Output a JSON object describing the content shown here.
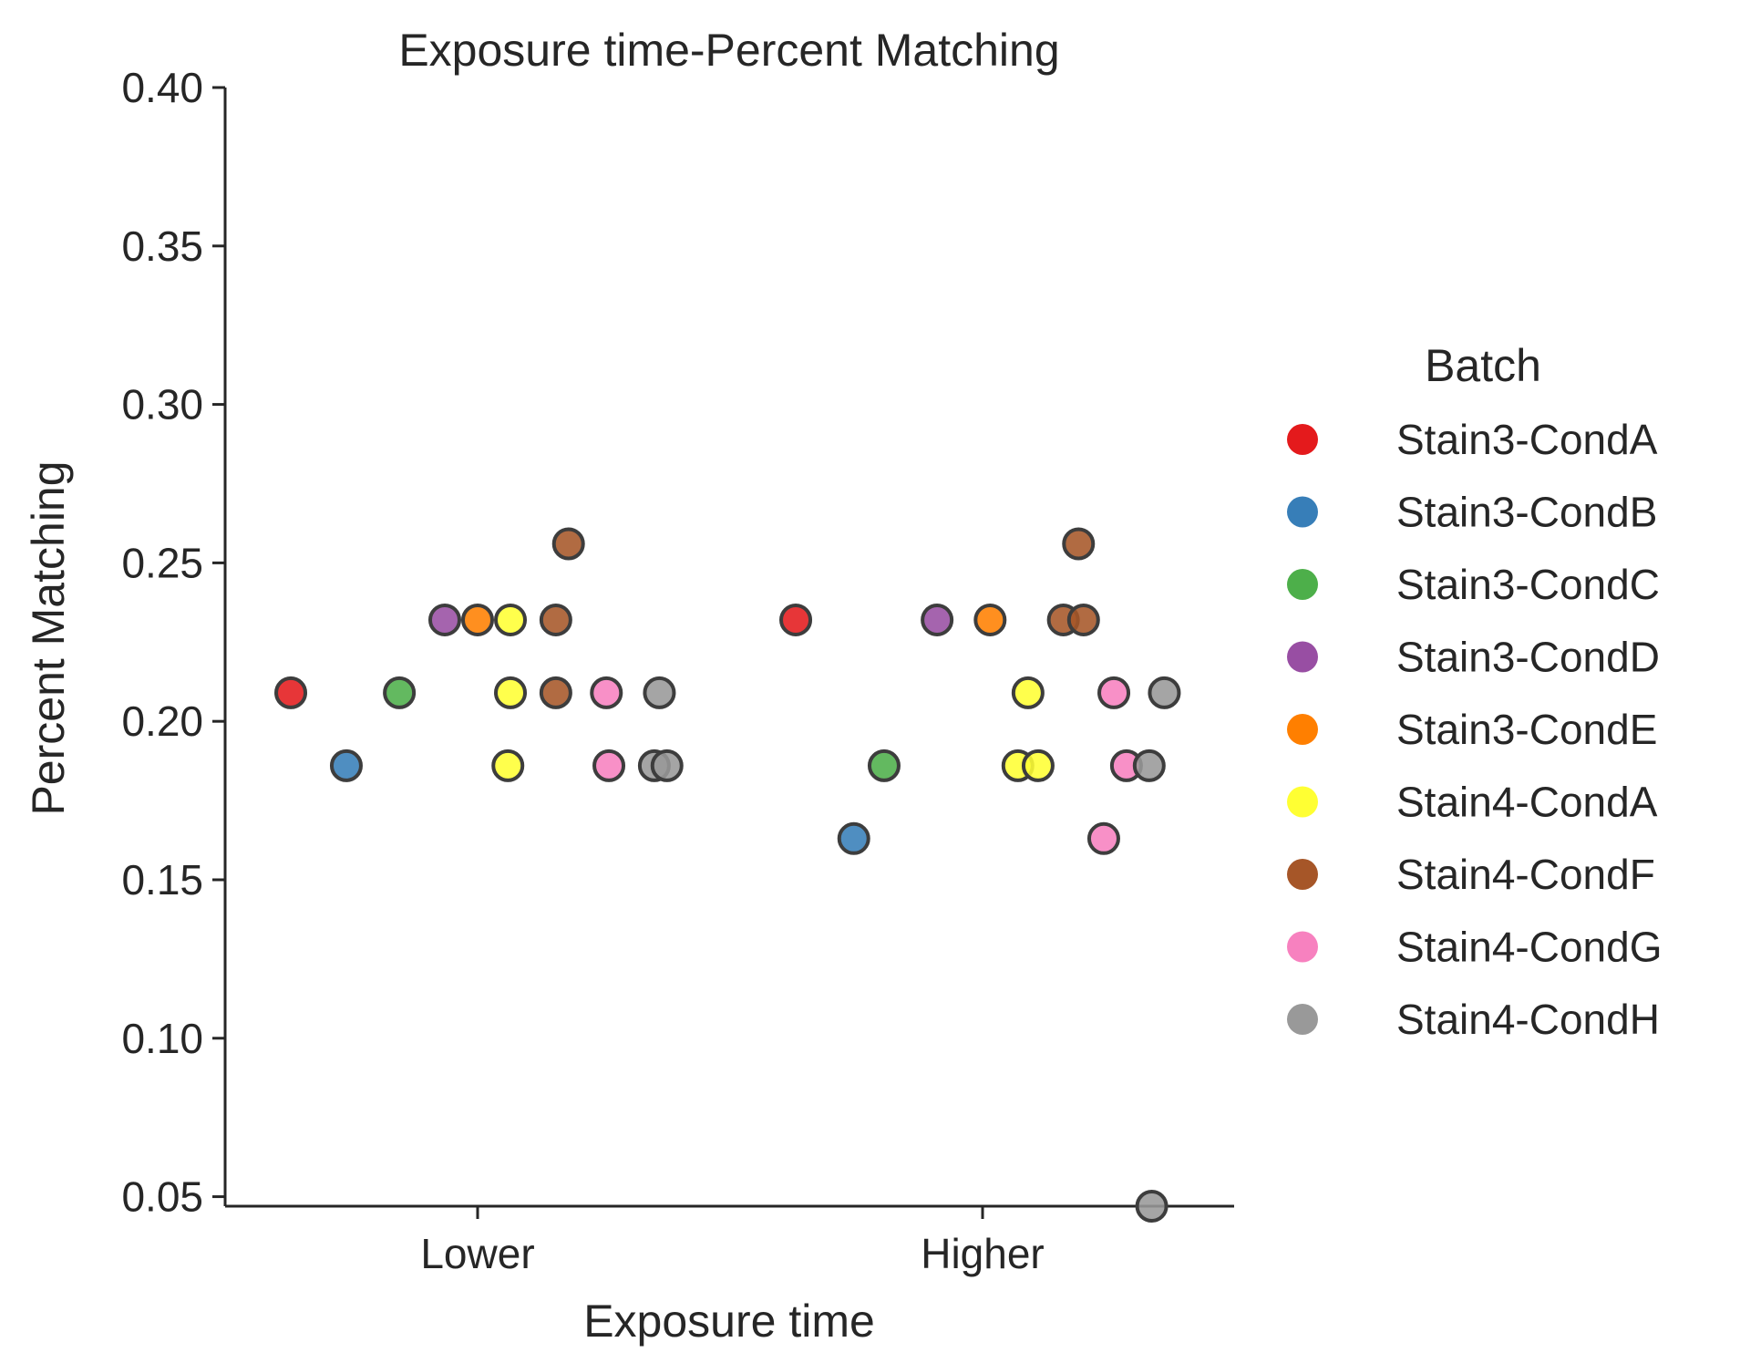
{
  "chart_data": {
    "type": "scatter",
    "title": "Exposure time-Percent Matching",
    "xlabel": "Exposure time",
    "ylabel": "Percent Matching",
    "categories": [
      "Lower",
      "Higher"
    ],
    "ylim": [
      0.047,
      0.4
    ],
    "yticks": [
      "0.05",
      "0.10",
      "0.15",
      "0.20",
      "0.25",
      "0.30",
      "0.35",
      "0.40"
    ],
    "grid": false,
    "legend": {
      "title": "Batch",
      "position": "right"
    },
    "series": [
      {
        "name": "Stain3-CondA",
        "color": "#e41a1c",
        "points": [
          {
            "category": "Lower",
            "jitter": -0.37,
            "y": 0.209
          },
          {
            "category": "Higher",
            "jitter": -0.37,
            "y": 0.232
          }
        ]
      },
      {
        "name": "Stain3-CondB",
        "color": "#377eb8",
        "points": [
          {
            "category": "Lower",
            "jitter": -0.26,
            "y": 0.186
          },
          {
            "category": "Higher",
            "jitter": -0.255,
            "y": 0.163
          }
        ]
      },
      {
        "name": "Stain3-CondC",
        "color": "#4daf4a",
        "points": [
          {
            "category": "Lower",
            "jitter": -0.155,
            "y": 0.209
          },
          {
            "category": "Higher",
            "jitter": -0.195,
            "y": 0.186
          }
        ]
      },
      {
        "name": "Stain3-CondD",
        "color": "#984ea3",
        "points": [
          {
            "category": "Lower",
            "jitter": -0.065,
            "y": 0.232
          },
          {
            "category": "Higher",
            "jitter": -0.09,
            "y": 0.232
          }
        ]
      },
      {
        "name": "Stain3-CondE",
        "color": "#ff7f00",
        "points": [
          {
            "category": "Lower",
            "jitter": 0.0,
            "y": 0.232
          },
          {
            "category": "Higher",
            "jitter": 0.015,
            "y": 0.232
          }
        ]
      },
      {
        "name": "Stain4-CondA",
        "color": "#ffff33",
        "points": [
          {
            "category": "Lower",
            "jitter": 0.065,
            "y": 0.232
          },
          {
            "category": "Lower",
            "jitter": 0.065,
            "y": 0.209
          },
          {
            "category": "Lower",
            "jitter": 0.06,
            "y": 0.186
          },
          {
            "category": "Higher",
            "jitter": 0.09,
            "y": 0.209
          },
          {
            "category": "Higher",
            "jitter": 0.07,
            "y": 0.186
          },
          {
            "category": "Higher",
            "jitter": 0.11,
            "y": 0.186
          }
        ]
      },
      {
        "name": "Stain4-CondF",
        "color": "#a65628",
        "points": [
          {
            "category": "Lower",
            "jitter": 0.18,
            "y": 0.256
          },
          {
            "category": "Lower",
            "jitter": 0.155,
            "y": 0.232
          },
          {
            "category": "Lower",
            "jitter": 0.155,
            "y": 0.209
          },
          {
            "category": "Higher",
            "jitter": 0.19,
            "y": 0.256
          },
          {
            "category": "Higher",
            "jitter": 0.16,
            "y": 0.232
          },
          {
            "category": "Higher",
            "jitter": 0.2,
            "y": 0.232
          }
        ]
      },
      {
        "name": "Stain4-CondG",
        "color": "#f781bf",
        "points": [
          {
            "category": "Lower",
            "jitter": 0.255,
            "y": 0.209
          },
          {
            "category": "Lower",
            "jitter": 0.26,
            "y": 0.186
          },
          {
            "category": "Higher",
            "jitter": 0.26,
            "y": 0.209
          },
          {
            "category": "Higher",
            "jitter": 0.285,
            "y": 0.186
          },
          {
            "category": "Higher",
            "jitter": 0.24,
            "y": 0.163
          }
        ]
      },
      {
        "name": "Stain4-CondH",
        "color": "#999999",
        "points": [
          {
            "category": "Lower",
            "jitter": 0.36,
            "y": 0.209
          },
          {
            "category": "Lower",
            "jitter": 0.35,
            "y": 0.186
          },
          {
            "category": "Lower",
            "jitter": 0.375,
            "y": 0.186
          },
          {
            "category": "Higher",
            "jitter": 0.36,
            "y": 0.209
          },
          {
            "category": "Higher",
            "jitter": 0.33,
            "y": 0.186
          },
          {
            "category": "Higher",
            "jitter": 0.335,
            "y": 0.047
          }
        ]
      }
    ]
  }
}
